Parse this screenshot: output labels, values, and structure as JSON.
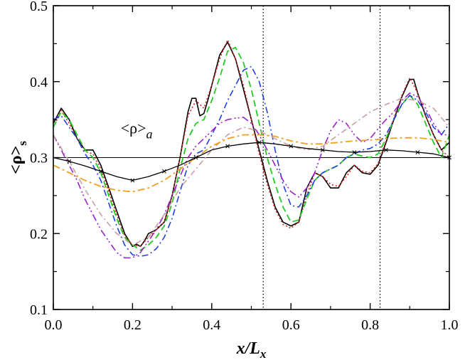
{
  "chart_data": {
    "type": "line",
    "title": "",
    "xlabel": "x/L",
    "xlabel_sub": "x",
    "ylabel": "<ρ>",
    "ylabel_sub": "s",
    "xlim": [
      0.0,
      1.0
    ],
    "ylim": [
      0.1,
      0.5
    ],
    "xticks": [
      "0.0",
      "0.2",
      "0.4",
      "0.6",
      "0.8",
      "1.0"
    ],
    "yticks": [
      "0.1",
      "0.2",
      "0.3",
      "0.4",
      "0.5"
    ],
    "annotation": {
      "text": "<ρ>",
      "sub": "a",
      "x": 0.17,
      "y": 0.332
    },
    "reference_line": {
      "y": 0.3
    },
    "vertical_lines": [
      0.53,
      0.825
    ],
    "series": [
      {
        "name": "black-solid",
        "color": "#000000",
        "dash": "",
        "width": 1.6,
        "x": [
          0.0,
          0.02,
          0.04,
          0.06,
          0.08,
          0.1,
          0.12,
          0.14,
          0.16,
          0.18,
          0.2,
          0.21,
          0.22,
          0.23,
          0.24,
          0.26,
          0.28,
          0.3,
          0.32,
          0.34,
          0.35,
          0.36,
          0.37,
          0.38,
          0.39,
          0.4,
          0.42,
          0.44,
          0.46,
          0.48,
          0.5,
          0.52,
          0.54,
          0.56,
          0.58,
          0.6,
          0.62,
          0.64,
          0.66,
          0.68,
          0.7,
          0.72,
          0.74,
          0.76,
          0.78,
          0.8,
          0.82,
          0.84,
          0.86,
          0.88,
          0.9,
          0.91,
          0.92,
          0.94,
          0.96,
          0.98,
          1.0
        ],
        "y": [
          0.345,
          0.365,
          0.35,
          0.325,
          0.31,
          0.31,
          0.29,
          0.26,
          0.23,
          0.2,
          0.183,
          0.186,
          0.183,
          0.19,
          0.2,
          0.205,
          0.215,
          0.25,
          0.3,
          0.36,
          0.378,
          0.378,
          0.355,
          0.358,
          0.375,
          0.395,
          0.435,
          0.452,
          0.43,
          0.39,
          0.35,
          0.31,
          0.27,
          0.235,
          0.215,
          0.21,
          0.215,
          0.26,
          0.28,
          0.275,
          0.26,
          0.26,
          0.28,
          0.29,
          0.28,
          0.278,
          0.29,
          0.32,
          0.35,
          0.38,
          0.403,
          0.403,
          0.385,
          0.355,
          0.33,
          0.31,
          0.32
        ]
      },
      {
        "name": "red-dotted",
        "color": "#d62020",
        "dash": "2,3",
        "width": 1.6,
        "x": [
          0.0,
          0.02,
          0.04,
          0.06,
          0.08,
          0.1,
          0.12,
          0.14,
          0.16,
          0.18,
          0.2,
          0.22,
          0.24,
          0.26,
          0.28,
          0.3,
          0.32,
          0.34,
          0.36,
          0.38,
          0.4,
          0.42,
          0.44,
          0.46,
          0.48,
          0.5,
          0.52,
          0.54,
          0.56,
          0.58,
          0.6,
          0.62,
          0.64,
          0.66,
          0.68,
          0.7,
          0.72,
          0.74,
          0.76,
          0.78,
          0.8,
          0.82,
          0.84,
          0.86,
          0.88,
          0.9,
          0.92,
          0.94,
          0.96,
          0.98,
          1.0
        ],
        "y": [
          0.34,
          0.362,
          0.345,
          0.325,
          0.308,
          0.305,
          0.285,
          0.255,
          0.225,
          0.197,
          0.185,
          0.183,
          0.195,
          0.205,
          0.215,
          0.25,
          0.3,
          0.355,
          0.375,
          0.365,
          0.395,
          0.43,
          0.455,
          0.43,
          0.395,
          0.35,
          0.305,
          0.265,
          0.232,
          0.212,
          0.207,
          0.215,
          0.25,
          0.28,
          0.275,
          0.265,
          0.262,
          0.275,
          0.29,
          0.282,
          0.28,
          0.292,
          0.322,
          0.352,
          0.382,
          0.405,
          0.385,
          0.355,
          0.33,
          0.31,
          0.3
        ]
      },
      {
        "name": "green-dashed",
        "color": "#22cc22",
        "dash": "9,5",
        "width": 1.8,
        "x": [
          0.0,
          0.02,
          0.04,
          0.06,
          0.08,
          0.1,
          0.12,
          0.14,
          0.16,
          0.18,
          0.2,
          0.22,
          0.24,
          0.26,
          0.28,
          0.3,
          0.32,
          0.34,
          0.36,
          0.38,
          0.4,
          0.42,
          0.44,
          0.46,
          0.48,
          0.5,
          0.52,
          0.54,
          0.56,
          0.58,
          0.6,
          0.62,
          0.64,
          0.66,
          0.68,
          0.7,
          0.72,
          0.74,
          0.76,
          0.78,
          0.8,
          0.82,
          0.84,
          0.86,
          0.88,
          0.9,
          0.92,
          0.94,
          0.96,
          0.98,
          1.0
        ],
        "y": [
          0.34,
          0.36,
          0.35,
          0.33,
          0.31,
          0.3,
          0.28,
          0.25,
          0.22,
          0.195,
          0.185,
          0.178,
          0.185,
          0.195,
          0.21,
          0.24,
          0.285,
          0.325,
          0.345,
          0.35,
          0.375,
          0.405,
          0.44,
          0.445,
          0.425,
          0.39,
          0.345,
          0.3,
          0.265,
          0.235,
          0.215,
          0.218,
          0.245,
          0.27,
          0.28,
          0.285,
          0.29,
          0.3,
          0.305,
          0.302,
          0.3,
          0.305,
          0.325,
          0.35,
          0.37,
          0.382,
          0.37,
          0.345,
          0.32,
          0.3,
          0.33
        ]
      },
      {
        "name": "blue-dashdot",
        "color": "#2040e0",
        "dash": "9,4,2,4",
        "width": 1.6,
        "x": [
          0.0,
          0.02,
          0.04,
          0.06,
          0.08,
          0.1,
          0.12,
          0.14,
          0.16,
          0.18,
          0.2,
          0.22,
          0.24,
          0.26,
          0.28,
          0.3,
          0.32,
          0.34,
          0.36,
          0.38,
          0.4,
          0.42,
          0.44,
          0.46,
          0.48,
          0.5,
          0.52,
          0.54,
          0.56,
          0.58,
          0.6,
          0.62,
          0.64,
          0.66,
          0.68,
          0.7,
          0.72,
          0.74,
          0.76,
          0.78,
          0.8,
          0.82,
          0.84,
          0.86,
          0.88,
          0.9,
          0.92,
          0.94,
          0.96,
          0.98,
          1.0
        ],
        "y": [
          0.35,
          0.355,
          0.34,
          0.325,
          0.305,
          0.29,
          0.27,
          0.24,
          0.21,
          0.185,
          0.172,
          0.17,
          0.172,
          0.18,
          0.195,
          0.22,
          0.255,
          0.29,
          0.305,
          0.31,
          0.33,
          0.35,
          0.375,
          0.395,
          0.415,
          0.42,
          0.4,
          0.36,
          0.31,
          0.265,
          0.237,
          0.235,
          0.25,
          0.27,
          0.28,
          0.285,
          0.29,
          0.3,
          0.305,
          0.31,
          0.312,
          0.318,
          0.33,
          0.35,
          0.37,
          0.382,
          0.375,
          0.36,
          0.34,
          0.33,
          0.345
        ]
      },
      {
        "name": "purple-dashdotdot",
        "color": "#9a22c8",
        "dash": "10,4,2,3,2,4",
        "width": 1.6,
        "x": [
          0.0,
          0.02,
          0.04,
          0.06,
          0.08,
          0.1,
          0.12,
          0.14,
          0.16,
          0.18,
          0.2,
          0.22,
          0.24,
          0.26,
          0.28,
          0.3,
          0.32,
          0.34,
          0.36,
          0.38,
          0.4,
          0.42,
          0.44,
          0.46,
          0.48,
          0.5,
          0.52,
          0.54,
          0.56,
          0.58,
          0.6,
          0.62,
          0.64,
          0.66,
          0.68,
          0.7,
          0.72,
          0.74,
          0.76,
          0.78,
          0.8,
          0.82,
          0.84,
          0.86,
          0.88,
          0.9,
          0.92,
          0.94,
          0.96,
          0.98,
          1.0
        ],
        "y": [
          0.33,
          0.31,
          0.29,
          0.27,
          0.245,
          0.225,
          0.205,
          0.19,
          0.175,
          0.168,
          0.168,
          0.175,
          0.19,
          0.205,
          0.225,
          0.25,
          0.275,
          0.3,
          0.315,
          0.325,
          0.335,
          0.345,
          0.35,
          0.352,
          0.353,
          0.345,
          0.33,
          0.31,
          0.29,
          0.27,
          0.255,
          0.248,
          0.26,
          0.28,
          0.31,
          0.335,
          0.35,
          0.345,
          0.33,
          0.32,
          0.325,
          0.338,
          0.35,
          0.36,
          0.375,
          0.385,
          0.38,
          0.365,
          0.345,
          0.33,
          0.33
        ]
      },
      {
        "name": "pink-dashdot",
        "color": "#c9a0a0",
        "dash": "8,4,2,4",
        "width": 1.6,
        "x": [
          0.0,
          0.04,
          0.08,
          0.12,
          0.16,
          0.2,
          0.24,
          0.28,
          0.32,
          0.36,
          0.4,
          0.44,
          0.48,
          0.52,
          0.56,
          0.6,
          0.64,
          0.68,
          0.72,
          0.76,
          0.8,
          0.84,
          0.88,
          0.92,
          0.96,
          1.0
        ],
        "y": [
          0.33,
          0.295,
          0.258,
          0.225,
          0.2,
          0.185,
          0.195,
          0.225,
          0.26,
          0.285,
          0.31,
          0.33,
          0.34,
          0.335,
          0.325,
          0.315,
          0.31,
          0.315,
          0.33,
          0.345,
          0.36,
          0.37,
          0.378,
          0.375,
          0.365,
          0.34
        ]
      },
      {
        "name": "orange-dashdot",
        "color": "#f0a020",
        "dash": "10,4,3,4",
        "width": 1.8,
        "x": [
          0.0,
          0.04,
          0.08,
          0.12,
          0.16,
          0.2,
          0.24,
          0.28,
          0.32,
          0.36,
          0.4,
          0.44,
          0.48,
          0.52,
          0.56,
          0.6,
          0.64,
          0.68,
          0.72,
          0.76,
          0.8,
          0.84,
          0.88,
          0.92,
          0.96,
          1.0
        ],
        "y": [
          0.29,
          0.28,
          0.27,
          0.262,
          0.257,
          0.255,
          0.26,
          0.27,
          0.285,
          0.3,
          0.315,
          0.325,
          0.33,
          0.33,
          0.328,
          0.322,
          0.318,
          0.318,
          0.32,
          0.322,
          0.323,
          0.325,
          0.326,
          0.326,
          0.324,
          0.32
        ]
      },
      {
        "name": "black-cross",
        "color": "#000000",
        "dash": "",
        "width": 1.3,
        "marker": "x",
        "x": [
          0.0,
          0.04,
          0.08,
          0.12,
          0.16,
          0.2,
          0.24,
          0.28,
          0.32,
          0.36,
          0.4,
          0.44,
          0.48,
          0.52,
          0.56,
          0.6,
          0.64,
          0.68,
          0.72,
          0.76,
          0.8,
          0.84,
          0.88,
          0.92,
          0.96,
          1.0
        ],
        "y": [
          0.3,
          0.295,
          0.289,
          0.282,
          0.275,
          0.27,
          0.275,
          0.282,
          0.29,
          0.3,
          0.31,
          0.315,
          0.318,
          0.32,
          0.318,
          0.315,
          0.312,
          0.31,
          0.308,
          0.307,
          0.308,
          0.31,
          0.309,
          0.307,
          0.305,
          0.3
        ]
      }
    ]
  }
}
